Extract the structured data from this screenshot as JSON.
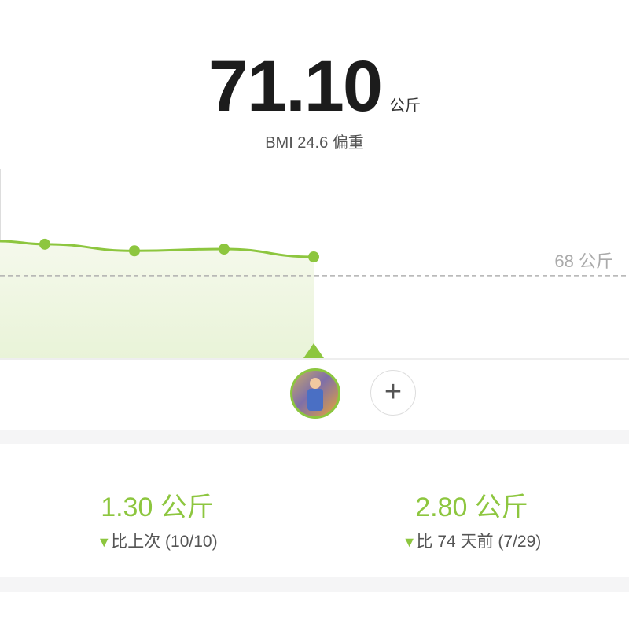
{
  "header": {
    "weight": "71.10",
    "unit": "公斤",
    "bmi": "BMI 24.6 偏重"
  },
  "chart_data": {
    "type": "area",
    "values": [
      73.7,
      73.2,
      72.1,
      72.4,
      71.1
    ],
    "target": 68,
    "target_label": "68 公斤",
    "colors": {
      "line": "#8dc63f",
      "fill": "#eef5df",
      "target": "#b0b0b0"
    }
  },
  "controls": {
    "avatar": "user-avatar",
    "add_icon": "+"
  },
  "stats": [
    {
      "value": "1.30 公斤",
      "arrow": "▼",
      "label": "比上次 (10/10)"
    },
    {
      "value": "2.80 公斤",
      "arrow": "▼",
      "label": "比 74 天前 (7/29)"
    }
  ]
}
